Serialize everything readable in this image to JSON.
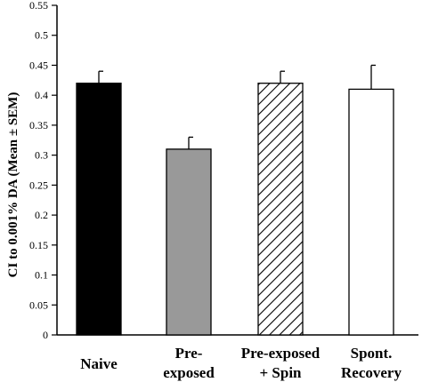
{
  "chart_data": {
    "type": "bar",
    "title": "",
    "xlabel": "",
    "ylabel": "CI to 0.001% DA (Mean ± SEM)",
    "ylim": [
      0,
      0.55
    ],
    "yticks": [
      "0",
      "0.05",
      "0.1",
      "0.15",
      "0.2",
      "0.25",
      "0.3",
      "0.35",
      "0.4",
      "0.45",
      "0.5",
      "0.55"
    ],
    "grid": false,
    "legend": "none",
    "categories": [
      [
        "Naive"
      ],
      [
        "Pre-",
        "exposed"
      ],
      [
        "Pre-exposed",
        "+ Spin"
      ],
      [
        "Spont.",
        "Recovery"
      ]
    ],
    "values": [
      0.42,
      0.31,
      0.42,
      0.41
    ],
    "errors": [
      0.02,
      0.02,
      0.02,
      0.04
    ],
    "fills": [
      "solid-black",
      "solid-gray",
      "diagonal-hatch",
      "white"
    ],
    "colors": {
      "black": "#000000",
      "gray": "#999999",
      "white": "#ffffff"
    }
  }
}
